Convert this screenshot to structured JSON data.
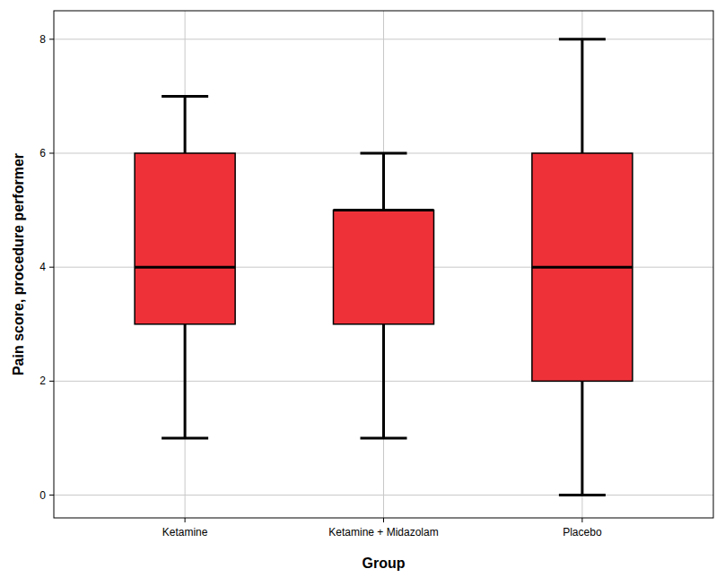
{
  "chart_data": {
    "type": "box",
    "x_label": "Group",
    "y_label": "Pain score, procedure performer",
    "categories": [
      "Ketamine",
      "Ketamine + Midazolam",
      "Placebo"
    ],
    "min": [
      1,
      1,
      0
    ],
    "q1": [
      3,
      3,
      2
    ],
    "median": [
      4,
      5,
      4
    ],
    "q3": [
      6,
      5,
      6
    ],
    "max": [
      7,
      6,
      8
    ],
    "color": "#ee3139",
    "ylim": [
      -0.4,
      8.5
    ],
    "yticks": [
      0,
      2,
      4,
      6,
      8
    ],
    "grid": true
  }
}
